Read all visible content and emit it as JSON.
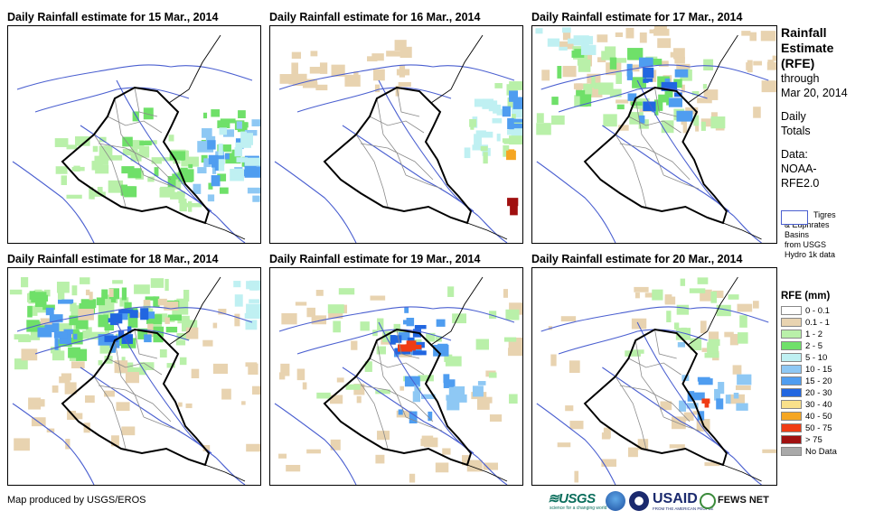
{
  "panels": [
    {
      "title": "Daily Rainfall estimate for 15 Mar., 2014"
    },
    {
      "title": "Daily Rainfall estimate for 16 Mar., 2014"
    },
    {
      "title": "Daily Rainfall estimate for 17 Mar., 2014"
    },
    {
      "title": "Daily Rainfall estimate for 18 Mar., 2014"
    },
    {
      "title": "Daily Rainfall estimate for 19 Mar., 2014"
    },
    {
      "title": "Daily Rainfall estimate for 20 Mar., 2014"
    }
  ],
  "sidebar": {
    "title_lines": [
      "Rainfall",
      "Estimate",
      "(RFE)"
    ],
    "through": "through",
    "date": "Mar 20, 2014",
    "daily": "Daily",
    "totals": "Totals",
    "data_label": "Data:",
    "data_source1": "NOAA-",
    "data_source2": "RFE2.0"
  },
  "basins": {
    "line1": "Tigres",
    "line2": "& Euphrates",
    "line3": "Basins",
    "line4": "from USGS",
    "line5": "Hydro 1k data",
    "color": "#4a5fd0"
  },
  "legend": {
    "title": "RFE (mm)",
    "items": [
      {
        "label": "0 - 0.1",
        "color": "#ffffff"
      },
      {
        "label": "0.1 - 1",
        "color": "#e8d3b0"
      },
      {
        "label": "1 - 2",
        "color": "#b9f0a9"
      },
      {
        "label": "2 - 5",
        "color": "#6fe069"
      },
      {
        "label": "5 - 10",
        "color": "#bff0f2"
      },
      {
        "label": "10 - 15",
        "color": "#8ec8f4"
      },
      {
        "label": "15 - 20",
        "color": "#4f9df0"
      },
      {
        "label": "20 - 30",
        "color": "#2166e0"
      },
      {
        "label": "30 - 40",
        "color": "#f9e08a"
      },
      {
        "label": "40 - 50",
        "color": "#f5a623"
      },
      {
        "label": "50 - 75",
        "color": "#f03c14"
      },
      {
        "label": "> 75",
        "color": "#a01010"
      },
      {
        "label": "No Data",
        "color": "#a9a9a9"
      }
    ]
  },
  "footer": {
    "credit": "Map produced by USGS/EROS"
  },
  "logos": {
    "usgs": "≋USGS",
    "usgs_sub": "science for a changing world",
    "usaid": "USAID",
    "usaid_sub": "FROM THE AMERICAN PEOPLE",
    "fews": "FEWS NET"
  }
}
